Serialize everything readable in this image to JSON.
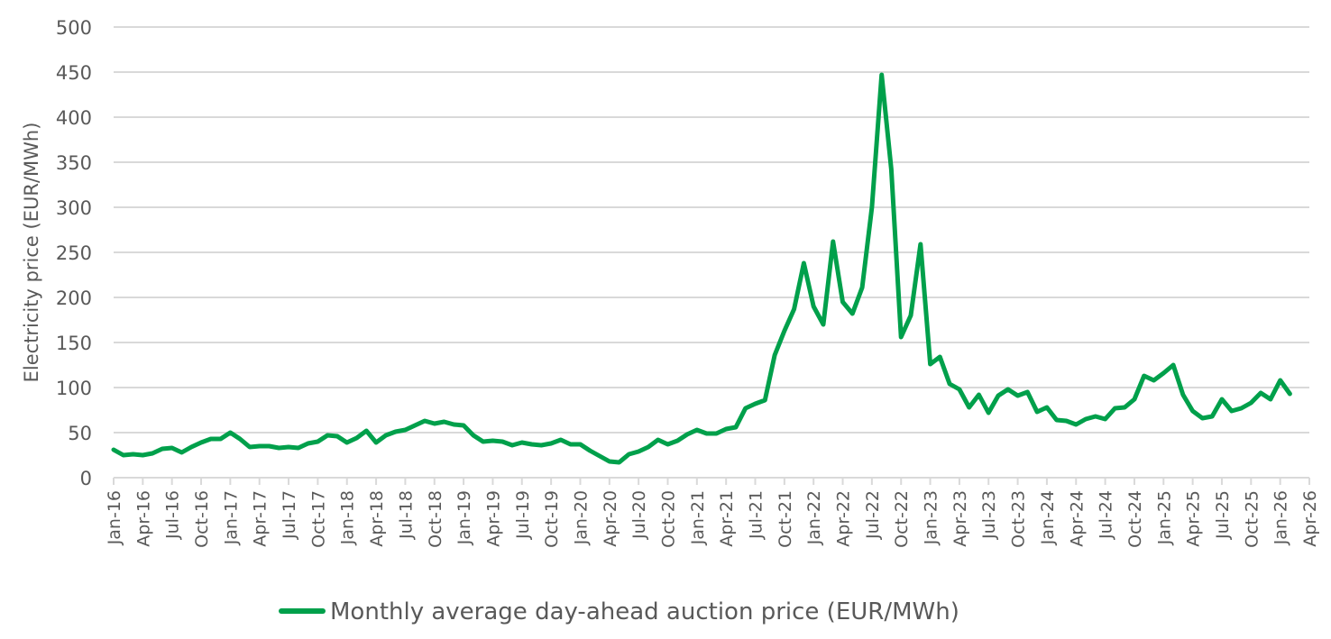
{
  "chart_data": {
    "type": "line",
    "title": "",
    "xlabel": "",
    "ylabel": "Electricity price (EUR/MWh)",
    "ylim": [
      0,
      500
    ],
    "yticks": [
      "0",
      "50",
      "100",
      "150",
      "200",
      "250",
      "300",
      "350",
      "400",
      "450",
      "500"
    ],
    "grid": true,
    "legend_position": "bottom",
    "xtick_labels": [
      "Jan-16",
      "Apr-16",
      "Jul-16",
      "Oct-16",
      "Jan-17",
      "Apr-17",
      "Jul-17",
      "Oct-17",
      "Jan-18",
      "Apr-18",
      "Jul-18",
      "Oct-18",
      "Jan-19",
      "Apr-19",
      "Jul-19",
      "Oct-19",
      "Jan-20",
      "Apr-20",
      "Jul-20",
      "Oct-20",
      "Jan-21",
      "Apr-21",
      "Jul-21",
      "Oct-21",
      "Jan-22",
      "Apr-22",
      "Jul-22",
      "Oct-22",
      "Jan-23",
      "Apr-23",
      "Jul-23",
      "Oct-23",
      "Jan-24",
      "Apr-24",
      "Jul-24",
      "Oct-24",
      "Jan-25",
      "Apr-25",
      "Jul-25",
      "Oct-25",
      "Jan-26",
      "Apr-26"
    ],
    "x_start": "Jan-16",
    "x_months_total": 124,
    "series": [
      {
        "name": "Monthly average day-ahead auction price (EUR/MWh)",
        "color": "#00a04b",
        "values": [
          31,
          25,
          26,
          25,
          27,
          32,
          33,
          28,
          34,
          39,
          43,
          43,
          50,
          43,
          34,
          35,
          35,
          33,
          34,
          33,
          38,
          40,
          47,
          46,
          39,
          44,
          52,
          39,
          47,
          51,
          53,
          58,
          63,
          60,
          62,
          59,
          58,
          47,
          40,
          41,
          40,
          36,
          39,
          37,
          36,
          38,
          42,
          37,
          37,
          30,
          24,
          18,
          17,
          26,
          29,
          34,
          42,
          37,
          41,
          48,
          53,
          49,
          49,
          54,
          56,
          77,
          82,
          86,
          136,
          163,
          187,
          238,
          190,
          170,
          262,
          195,
          182,
          211,
          300,
          447,
          342,
          156,
          180,
          259,
          126,
          134,
          104,
          98,
          78,
          92,
          72,
          91,
          98,
          91,
          95,
          73,
          78,
          64,
          63,
          59,
          65,
          68,
          65,
          77,
          78,
          87,
          113,
          108,
          116,
          125,
          92,
          74,
          66,
          68,
          87,
          74,
          77,
          83,
          94,
          87,
          108,
          93
        ]
      }
    ]
  }
}
